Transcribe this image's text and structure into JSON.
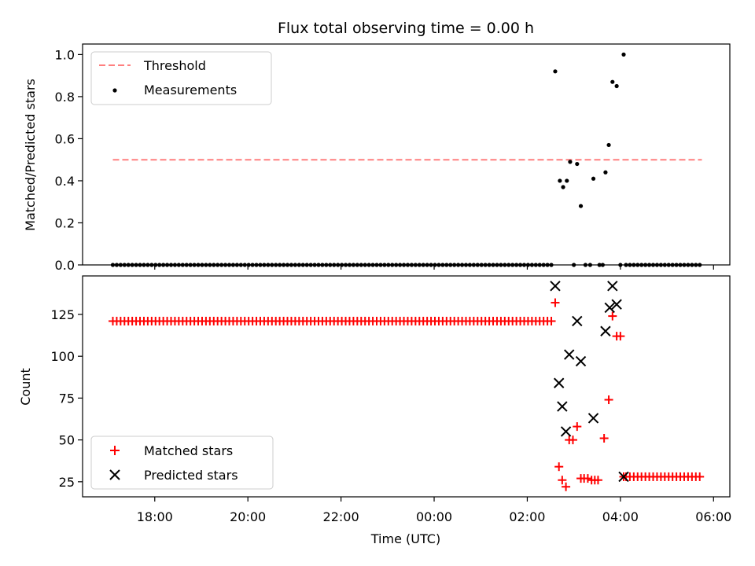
{
  "chart_data": [
    {
      "type": "scatter",
      "panel": "top",
      "title": "Flux total observing time = 0.00 h",
      "xlabel": "",
      "ylabel": "Matched/Predicted stars",
      "ylim": [
        0,
        1.05
      ],
      "yticks": [
        "0.0",
        "0.2",
        "0.4",
        "0.6",
        "0.8",
        "1.0"
      ],
      "ytick_values": [
        0,
        0.2,
        0.4,
        0.6,
        0.8,
        1.0
      ],
      "legend_placement": "top-left",
      "threshold": {
        "name": "Threshold",
        "value": 0.5,
        "x_start": 17.1,
        "x_end": 29.75,
        "color": "#ff7f7f"
      },
      "series": [
        {
          "name": "Measurements",
          "color": "#000000",
          "marker": "dot",
          "baseline_range": {
            "x_start": 17.1,
            "x_end": 26.55,
            "step_minutes": 5,
            "y": 0
          },
          "points": [
            [
              26.6,
              0.92
            ],
            [
              26.7,
              0.4
            ],
            [
              26.77,
              0.37
            ],
            [
              26.85,
              0.4
            ],
            [
              26.92,
              0.49
            ],
            [
              27.0,
              0.0
            ],
            [
              27.07,
              0.48
            ],
            [
              27.15,
              0.28
            ],
            [
              27.25,
              0.0
            ],
            [
              27.35,
              0.0
            ],
            [
              27.42,
              0.41
            ],
            [
              27.55,
              0.0
            ],
            [
              27.62,
              0.0
            ],
            [
              27.68,
              0.44
            ],
            [
              27.75,
              0.57
            ],
            [
              27.83,
              0.87
            ],
            [
              27.92,
              0.85
            ],
            [
              28.0,
              0.0
            ],
            [
              28.07,
              1.0
            ]
          ],
          "tail_range": {
            "x_start": 28.12,
            "x_end": 29.75,
            "step_minutes": 5,
            "y": 0
          }
        }
      ]
    },
    {
      "type": "scatter",
      "panel": "bottom",
      "xlabel": "Time (UTC)",
      "ylabel": "Count",
      "xlim": [
        16.45,
        30.35
      ],
      "ylim": [
        16,
        148
      ],
      "xticks": [
        "18:00",
        "20:00",
        "22:00",
        "00:00",
        "02:00",
        "04:00",
        "06:00"
      ],
      "xtick_values": [
        18,
        20,
        22,
        24,
        26,
        28,
        30
      ],
      "yticks": [
        "25",
        "50",
        "75",
        "100",
        "125"
      ],
      "ytick_values": [
        25,
        50,
        75,
        100,
        125
      ],
      "legend_placement": "bottom-left",
      "series": [
        {
          "name": "Matched stars",
          "color": "#ff0000",
          "marker": "plus",
          "baseline_range": {
            "x_start": 17.1,
            "x_end": 26.55,
            "step_minutes": 5,
            "y": 121
          },
          "points": [
            [
              26.6,
              132
            ],
            [
              26.68,
              34
            ],
            [
              26.75,
              26
            ],
            [
              26.83,
              22
            ],
            [
              26.9,
              50
            ],
            [
              26.98,
              50
            ],
            [
              27.07,
              58
            ],
            [
              27.15,
              27
            ],
            [
              27.22,
              27
            ],
            [
              27.3,
              27
            ],
            [
              27.38,
              26
            ],
            [
              27.45,
              26
            ],
            [
              27.52,
              26
            ],
            [
              27.65,
              51
            ],
            [
              27.75,
              74
            ],
            [
              27.83,
              124
            ],
            [
              27.92,
              112
            ],
            [
              28.0,
              112
            ],
            [
              28.07,
              28
            ]
          ],
          "tail_range": {
            "x_start": 28.12,
            "x_end": 29.75,
            "step_minutes": 5,
            "y": 28
          }
        },
        {
          "name": "Predicted stars",
          "color": "#000000",
          "marker": "x",
          "points": [
            [
              26.6,
              142
            ],
            [
              26.68,
              84
            ],
            [
              26.75,
              70
            ],
            [
              26.83,
              55
            ],
            [
              26.9,
              101
            ],
            [
              27.07,
              121
            ],
            [
              27.15,
              97
            ],
            [
              27.42,
              63
            ],
            [
              27.68,
              115
            ],
            [
              27.77,
              129
            ],
            [
              27.83,
              142
            ],
            [
              27.92,
              131
            ],
            [
              28.07,
              28
            ]
          ]
        }
      ]
    }
  ]
}
